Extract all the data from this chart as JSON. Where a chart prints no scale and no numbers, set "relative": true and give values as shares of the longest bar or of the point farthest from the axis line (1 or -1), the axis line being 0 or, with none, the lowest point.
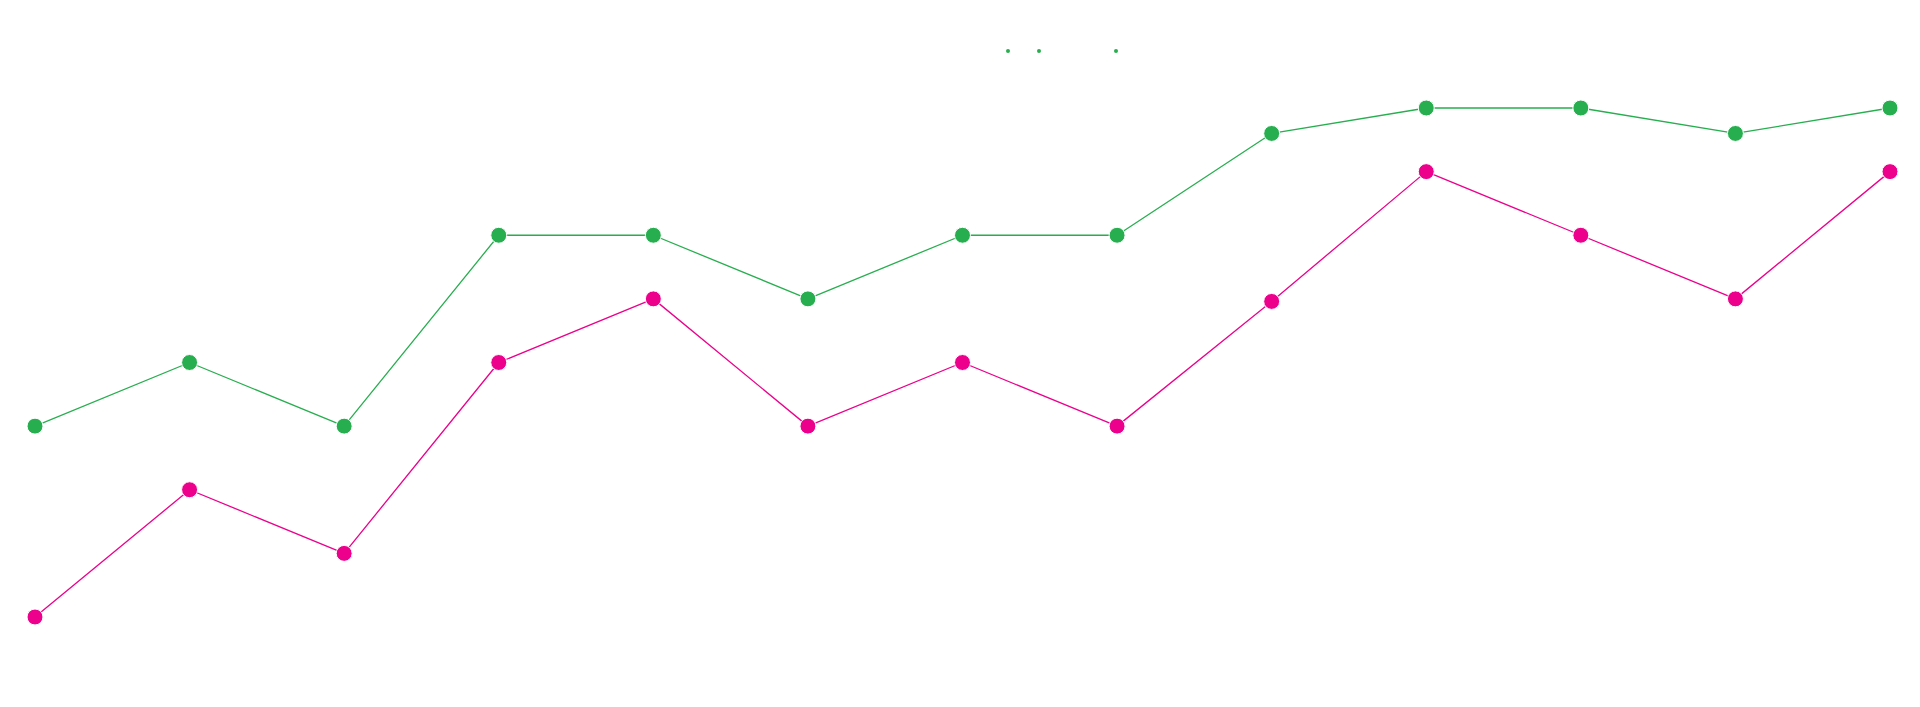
{
  "chart_data": {
    "type": "line",
    "relative": true,
    "marker": "circle",
    "categories": [
      null,
      null,
      null,
      null,
      null,
      null,
      null,
      null,
      null,
      null,
      null,
      null,
      null
    ],
    "series": [
      {
        "color": "#27ae4f",
        "values": [
          0.375,
          0.5,
          0.375,
          0.75,
          0.75,
          0.625,
          0.75,
          0.75,
          0.95,
          1,
          1,
          0.95,
          1
        ]
      },
      {
        "color": "#ec008c",
        "values": [
          0,
          0.25,
          0.125,
          0.5,
          0.625,
          0.375,
          0.5,
          0.375,
          0.62,
          0.875,
          0.75,
          0.625,
          0.875
        ]
      }
    ]
  }
}
